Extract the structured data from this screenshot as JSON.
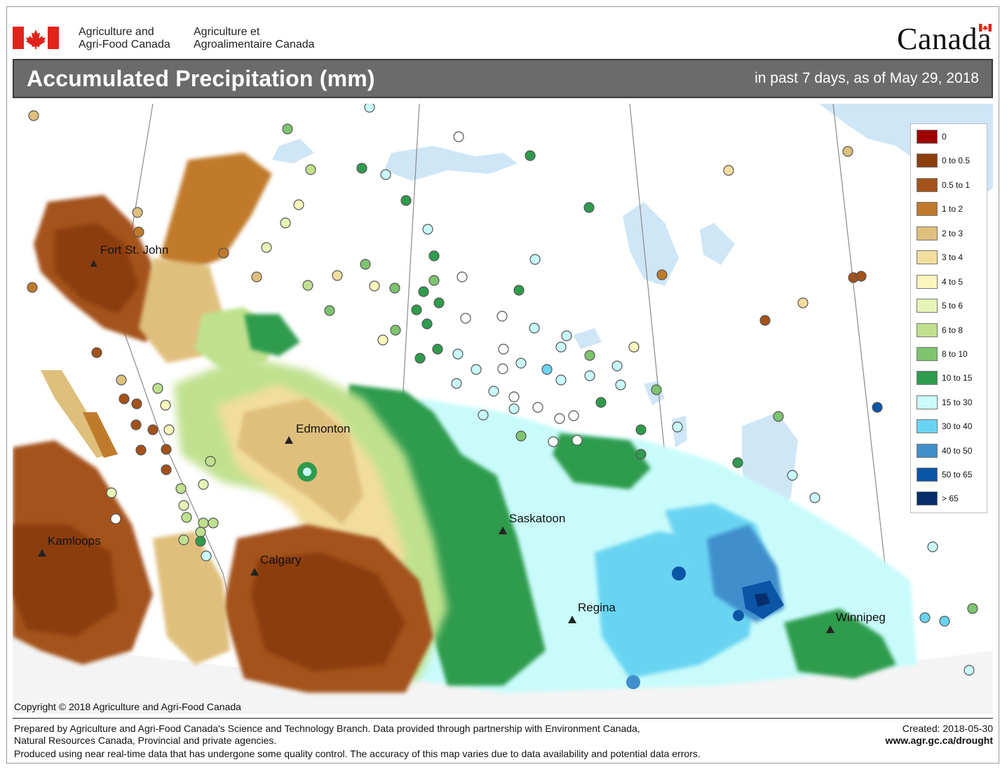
{
  "header": {
    "department_en": [
      "Agriculture and",
      "Agri-Food Canada"
    ],
    "department_fr": [
      "Agriculture et",
      "Agroalimentaire Canada"
    ],
    "wordmark": "Canada",
    "flag_icon": "canada-flag-icon"
  },
  "titlebar": {
    "title": "Accumulated Precipitation (mm)",
    "subtitle": "in past 7 days, as of May 29, 2018"
  },
  "map": {
    "cities": [
      {
        "name": "Fort St. John"
      },
      {
        "name": "Edmonton"
      },
      {
        "name": "Kamloops"
      },
      {
        "name": "Calgary"
      },
      {
        "name": "Saskatoon"
      },
      {
        "name": "Regina"
      },
      {
        "name": "Winnipeg"
      }
    ],
    "city_marker_icon": "triangle-marker-icon",
    "colors": {
      "water": "#cfe6f7",
      "land": "#ffffff"
    }
  },
  "legend": {
    "items": [
      {
        "label": "0",
        "color": "#9c0000"
      },
      {
        "label": "0 to 0.5",
        "color": "#8c3e0c"
      },
      {
        "label": "0.5 to 1",
        "color": "#a4521a"
      },
      {
        "label": "1 to 2",
        "color": "#c07a2c"
      },
      {
        "label": "2 to 3",
        "color": "#dfbf7c"
      },
      {
        "label": "3 to 4",
        "color": "#f2dd9c"
      },
      {
        "label": "4 to 5",
        "color": "#fbf6bd"
      },
      {
        "label": "5 to 6",
        "color": "#e6f4b6"
      },
      {
        "label": "6 to 8",
        "color": "#bfe18e"
      },
      {
        "label": "8 to 10",
        "color": "#7dc46e"
      },
      {
        "label": "10 to 15",
        "color": "#2f9b4d"
      },
      {
        "label": "15 to 30",
        "color": "#c9fbfb"
      },
      {
        "label": "30 to 40",
        "color": "#69d4f2"
      },
      {
        "label": "40 to 50",
        "color": "#3f8fcc"
      },
      {
        "label": "50 to 65",
        "color": "#0b55a7"
      },
      {
        "label": "> 65",
        "color": "#062d6b"
      }
    ]
  },
  "footer": {
    "copyright": "Copyright © 2018 Agriculture and Agri-Food Canada",
    "lines": [
      "Prepared by Agriculture and Agri-Food Canada's Science and Technology Branch. Data provided through partnership with Environment Canada,",
      "Natural Resources Canada, Provincial and private agencies.",
      "Produced using near real-time data that has undergone some quality control. The accuracy of this map varies due to data availability and potential data errors."
    ],
    "created": "Created: 2018-05-30",
    "url": "www.agr.gc.ca/drought"
  }
}
